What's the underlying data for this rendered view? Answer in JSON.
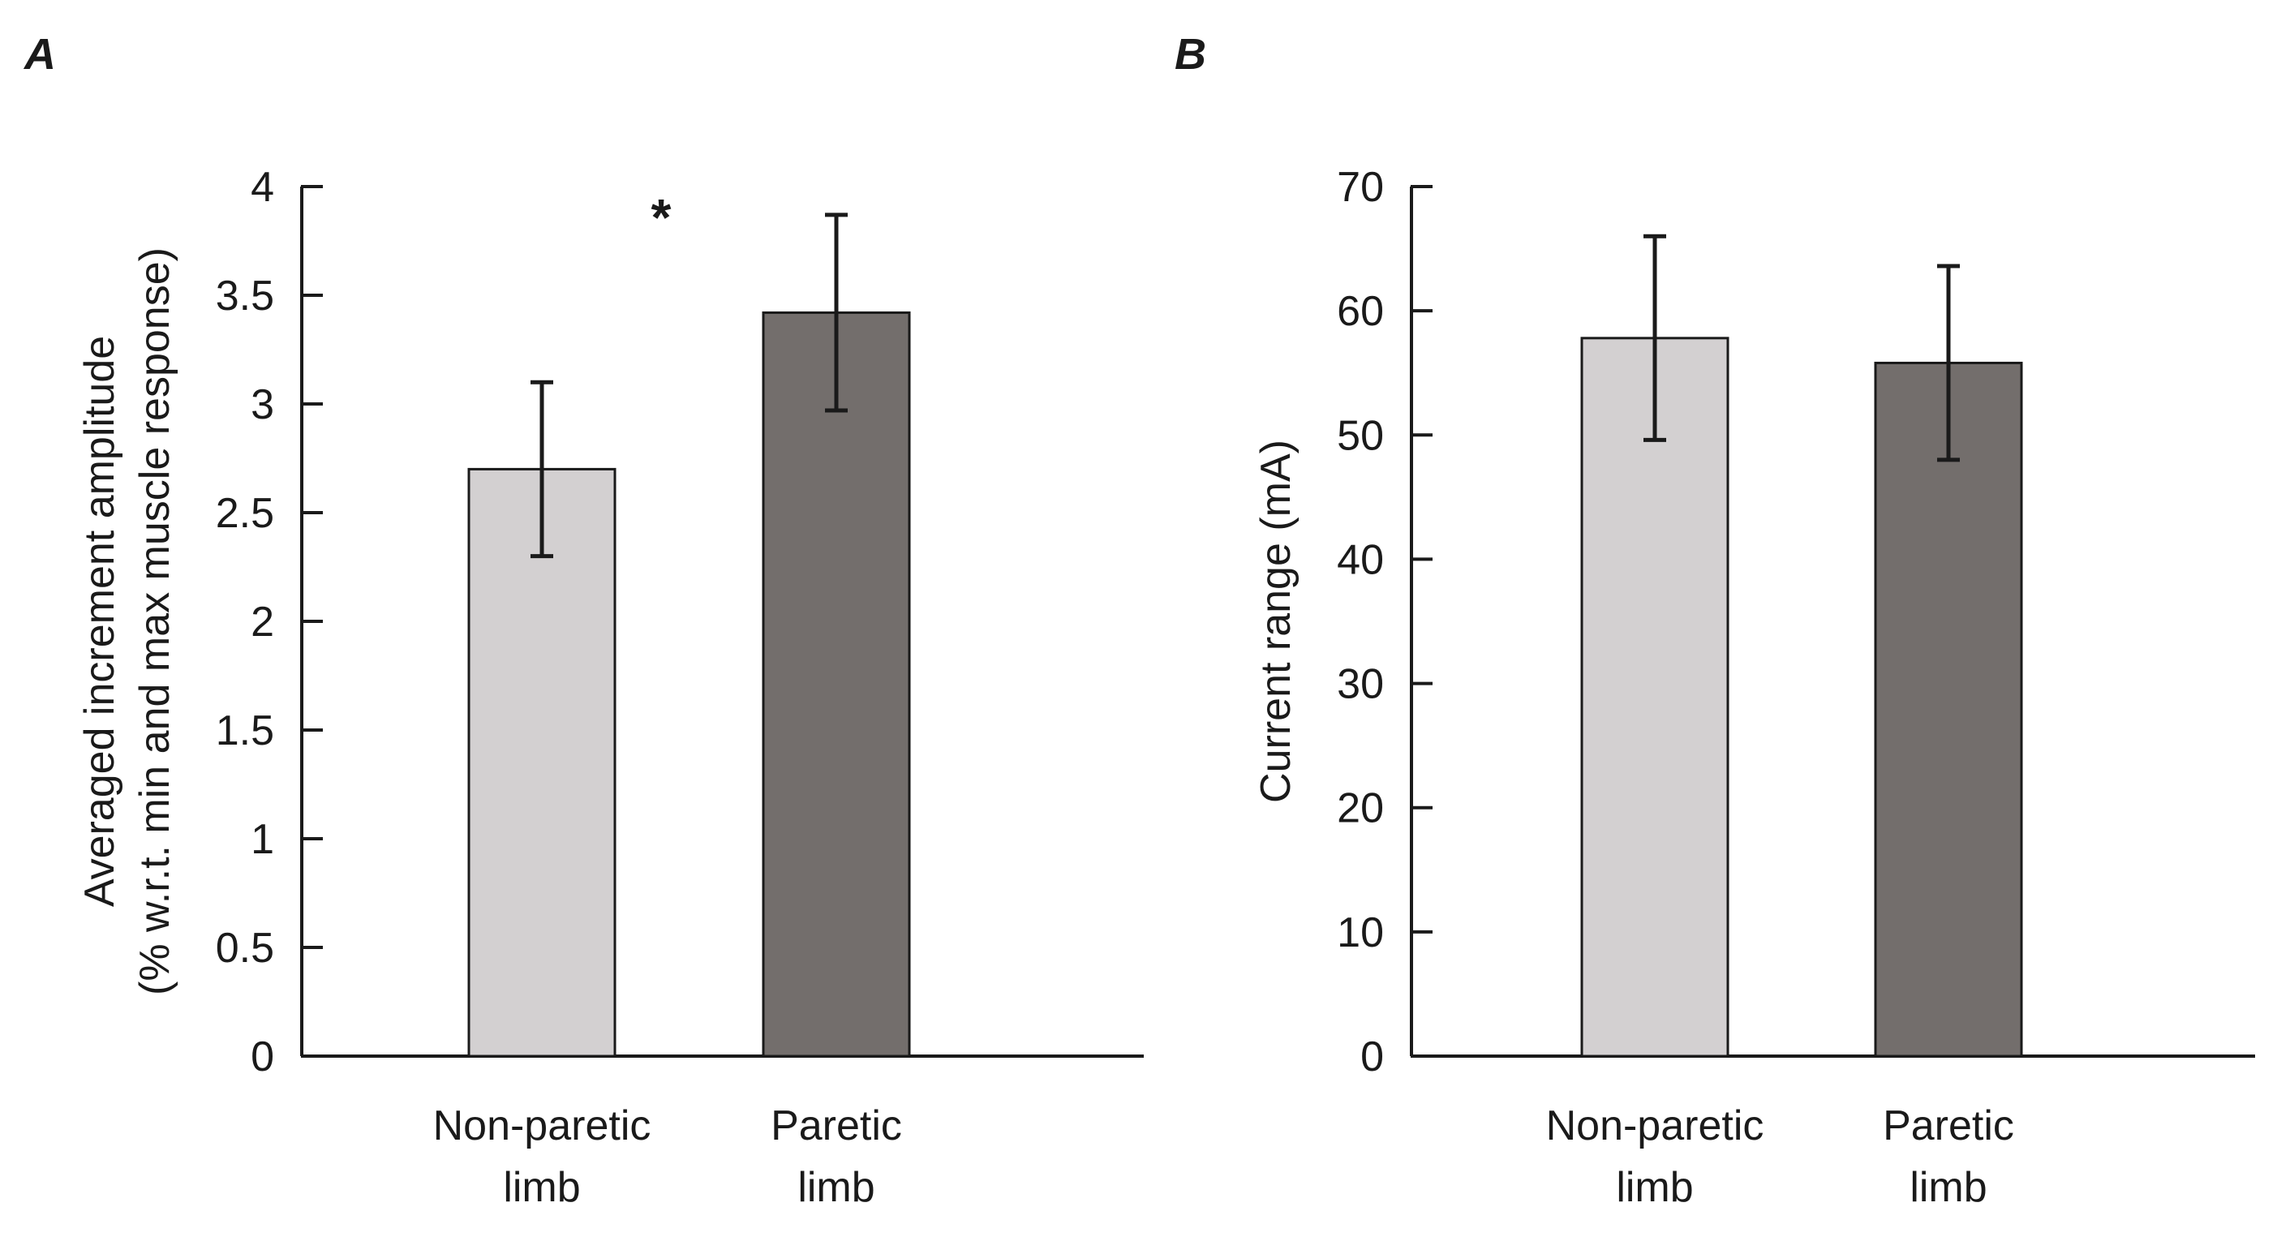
{
  "panels": [
    "A",
    "B"
  ],
  "chart_data": [
    {
      "type": "bar",
      "panel": "A",
      "categories": [
        "Non-paretic limb",
        "Paretic limb"
      ],
      "category_lines": [
        [
          "Non-paretic",
          "limb"
        ],
        [
          "Paretic",
          "limb"
        ]
      ],
      "values": [
        2.7,
        3.42
      ],
      "error": [
        0.4,
        0.45
      ],
      "bar_colors": [
        "#d3d0d1",
        "#736e6c"
      ],
      "ylabel_lines": [
        "Averaged increment amplitude",
        "(% w.r.t. min and max muscle response)"
      ],
      "ylim": [
        0,
        4
      ],
      "yticks": [
        0,
        0.5,
        1,
        1.5,
        2,
        2.5,
        3,
        3.5,
        4
      ],
      "ytick_labels": [
        "0",
        "0.5",
        "1",
        "1.5",
        "2",
        "2.5",
        "3",
        "3.5",
        "4"
      ],
      "annotation": "*",
      "grid": false
    },
    {
      "type": "bar",
      "panel": "B",
      "categories": [
        "Non-paretic limb",
        "Paretic limb"
      ],
      "category_lines": [
        [
          "Non-paretic",
          "limb"
        ],
        [
          "Paretic",
          "limb"
        ]
      ],
      "values": [
        57.8,
        55.8
      ],
      "error": [
        8.2,
        7.8
      ],
      "bar_colors": [
        "#d3d0d1",
        "#736e6c"
      ],
      "ylabel_lines": [
        "Current range (mA)"
      ],
      "ylim": [
        0,
        70
      ],
      "yticks": [
        0,
        10,
        20,
        30,
        40,
        50,
        60,
        70
      ],
      "ytick_labels": [
        "0",
        "10",
        "20",
        "30",
        "40",
        "50",
        "60",
        "70"
      ],
      "grid": false
    }
  ]
}
